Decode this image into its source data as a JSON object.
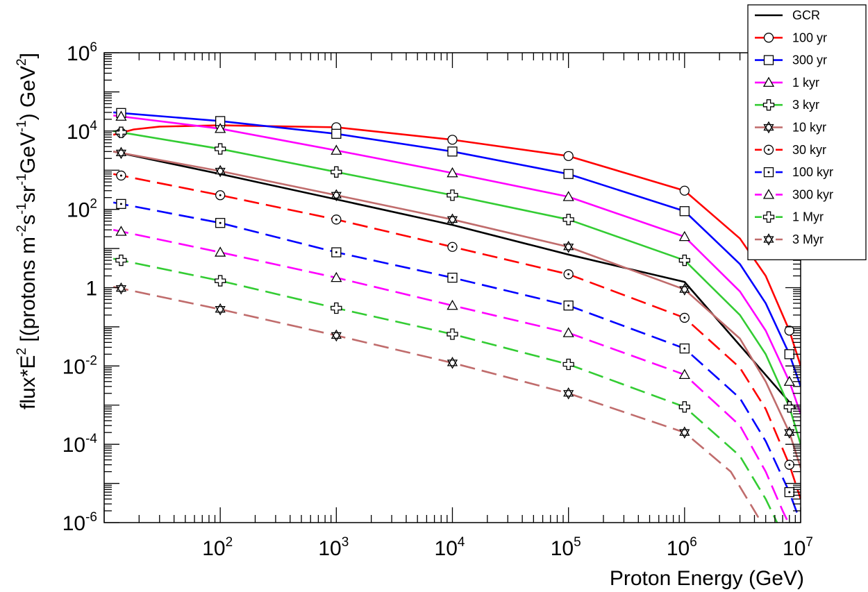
{
  "chart_data": {
    "type": "line",
    "title": "",
    "xlabel": "Proton Energy (GeV)",
    "ylabel": {
      "parts": [
        "flux*E",
        "2",
        " [(protons m",
        "-2",
        "s",
        "-1",
        "sr",
        "-1",
        "GeV",
        "-1",
        ") GeV",
        "2",
        "]"
      ],
      "sup_indices": [
        1,
        3,
        5,
        7,
        9,
        11
      ]
    },
    "x_scale": "log",
    "y_scale": "log",
    "xlim": [
      10,
      10000000
    ],
    "ylim": [
      1e-06,
      1000000
    ],
    "x_ticks": [
      {
        "value": 100,
        "base": "10",
        "exp": "2"
      },
      {
        "value": 1000,
        "base": "10",
        "exp": "3"
      },
      {
        "value": 10000,
        "base": "10",
        "exp": "4"
      },
      {
        "value": 100000,
        "base": "10",
        "exp": "5"
      },
      {
        "value": 1000000,
        "base": "10",
        "exp": "6"
      },
      {
        "value": 10000000,
        "base": "10",
        "exp": "7"
      }
    ],
    "y_ticks": [
      {
        "value": 1e-06,
        "base": "10",
        "exp": "-6"
      },
      {
        "value": 0.0001,
        "base": "10",
        "exp": "-4"
      },
      {
        "value": 0.01,
        "base": "10",
        "exp": "-2"
      },
      {
        "value": 1,
        "base": "1",
        "exp": ""
      },
      {
        "value": 100,
        "base": "10",
        "exp": "2"
      },
      {
        "value": 10000,
        "base": "10",
        "exp": "4"
      },
      {
        "value": 1000000,
        "base": "10",
        "exp": "6"
      }
    ],
    "grid": false,
    "legend_position": "top-right",
    "series": [
      {
        "name": "GCR",
        "color": "#000000",
        "dashed": false,
        "marker": "none",
        "points": [
          [
            12,
            3000
          ],
          [
            100,
            800
          ],
          [
            1000,
            180
          ],
          [
            10000,
            40
          ],
          [
            100000,
            7
          ],
          [
            1000000,
            1.4
          ],
          [
            9000000,
            0.0008
          ]
        ]
      },
      {
        "name": "100 yr",
        "color": "#ff0000",
        "dashed": false,
        "marker": "circle",
        "points": [
          [
            12,
            8000
          ],
          [
            18,
            11000
          ],
          [
            30,
            13000
          ],
          [
            100,
            14000
          ],
          [
            1000,
            12500
          ],
          [
            10000,
            6000
          ],
          [
            100000,
            2300
          ],
          [
            1000000,
            300
          ],
          [
            3000000,
            18
          ],
          [
            5000000,
            2
          ],
          [
            8000000,
            0.08
          ],
          [
            10000000,
            0.01
          ]
        ]
      },
      {
        "name": "300 yr",
        "color": "#0000ff",
        "dashed": false,
        "marker": "square",
        "points": [
          [
            12,
            30000
          ],
          [
            100,
            18000
          ],
          [
            1000,
            8500
          ],
          [
            10000,
            3000
          ],
          [
            100000,
            800
          ],
          [
            1000000,
            90
          ],
          [
            3000000,
            4
          ],
          [
            5000000,
            0.4
          ],
          [
            8000000,
            0.02
          ],
          [
            10000000,
            0.003
          ]
        ]
      },
      {
        "name": "1 kyr",
        "color": "#ff00ff",
        "dashed": false,
        "marker": "triangle",
        "points": [
          [
            12,
            25000
          ],
          [
            100,
            11500
          ],
          [
            1000,
            3200
          ],
          [
            10000,
            850
          ],
          [
            100000,
            210
          ],
          [
            1000000,
            20
          ],
          [
            3000000,
            0.8
          ],
          [
            5000000,
            0.08
          ],
          [
            8000000,
            0.004
          ],
          [
            10000000,
            0.0006
          ]
        ]
      },
      {
        "name": "3 kyr",
        "color": "#33cc33",
        "dashed": false,
        "marker": "cross",
        "points": [
          [
            12,
            10000
          ],
          [
            100,
            3500
          ],
          [
            1000,
            900
          ],
          [
            10000,
            230
          ],
          [
            100000,
            55
          ],
          [
            1000000,
            5
          ],
          [
            3000000,
            0.2
          ],
          [
            5000000,
            0.02
          ],
          [
            8000000,
            0.0009
          ],
          [
            10000000,
            0.0001
          ]
        ]
      },
      {
        "name": "10 kyr",
        "color": "#c06c6c",
        "dashed": false,
        "marker": "star",
        "points": [
          [
            12,
            3000
          ],
          [
            100,
            950
          ],
          [
            1000,
            230
          ],
          [
            10000,
            55
          ],
          [
            100000,
            11
          ],
          [
            1000000,
            0.9
          ],
          [
            3000000,
            0.05
          ],
          [
            5000000,
            0.004
          ],
          [
            8000000,
            0.0002
          ],
          [
            10000000,
            2.5e-05
          ]
        ]
      },
      {
        "name": "30 kyr",
        "color": "#ff0000",
        "dashed": true,
        "marker": "circle-dot",
        "points": [
          [
            12,
            800
          ],
          [
            100,
            230
          ],
          [
            1000,
            55
          ],
          [
            10000,
            11
          ],
          [
            100000,
            2.2
          ],
          [
            1000000,
            0.17
          ],
          [
            3000000,
            0.009
          ],
          [
            5000000,
            0.0008
          ],
          [
            8000000,
            3e-05
          ],
          [
            10000000,
            4e-06
          ]
        ]
      },
      {
        "name": "100 kyr",
        "color": "#0000ff",
        "dashed": true,
        "marker": "square-dot",
        "points": [
          [
            12,
            150
          ],
          [
            100,
            45
          ],
          [
            1000,
            8
          ],
          [
            10000,
            1.8
          ],
          [
            100000,
            0.35
          ],
          [
            1000000,
            0.028
          ],
          [
            3000000,
            0.0015
          ],
          [
            5000000,
            0.00012
          ],
          [
            8000000,
            6e-06
          ],
          [
            9500000,
            1.5e-06
          ]
        ]
      },
      {
        "name": "300 kyr",
        "color": "#ff00ff",
        "dashed": true,
        "marker": "triangle",
        "points": [
          [
            12,
            30
          ],
          [
            100,
            8
          ],
          [
            1000,
            1.8
          ],
          [
            10000,
            0.35
          ],
          [
            100000,
            0.07
          ],
          [
            1000000,
            0.006
          ],
          [
            3000000,
            0.0003
          ],
          [
            5000000,
            2e-05
          ],
          [
            7000000,
            2e-06
          ],
          [
            8500000,
            6e-07
          ]
        ]
      },
      {
        "name": "1 Myr",
        "color": "#33cc33",
        "dashed": true,
        "marker": "cross",
        "points": [
          [
            12,
            5.5
          ],
          [
            100,
            1.5
          ],
          [
            1000,
            0.3
          ],
          [
            10000,
            0.065
          ],
          [
            100000,
            0.011
          ],
          [
            1000000,
            0.0009
          ],
          [
            3000000,
            5e-05
          ],
          [
            5000000,
            4e-06
          ],
          [
            6500000,
            8e-07
          ]
        ]
      },
      {
        "name": "3 Myr",
        "color": "#c06c6c",
        "dashed": true,
        "marker": "star",
        "points": [
          [
            12,
            1.05
          ],
          [
            100,
            0.28
          ],
          [
            1000,
            0.06
          ],
          [
            10000,
            0.012
          ],
          [
            100000,
            0.002
          ],
          [
            1000000,
            0.0002
          ],
          [
            2500000,
            2e-05
          ],
          [
            4000000,
            2e-06
          ],
          [
            5500000,
            4e-07
          ]
        ]
      }
    ]
  }
}
